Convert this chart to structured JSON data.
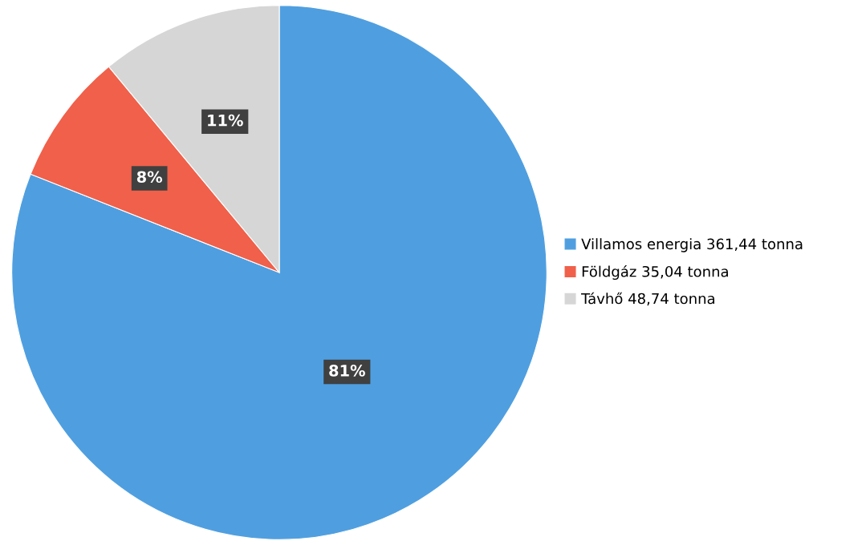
{
  "chart_data": {
    "type": "pie",
    "categories": [
      "Villamos energia 361,44 tonna",
      "Földgáz 35,04 tonna",
      "Távhő 48,74 tonna"
    ],
    "values": [
      81,
      8,
      11
    ],
    "value_labels": [
      "81%",
      "8%",
      "11%"
    ],
    "colors": [
      "#4f9fe0",
      "#f0604a",
      "#d6d6d6"
    ],
    "legend": "right"
  }
}
